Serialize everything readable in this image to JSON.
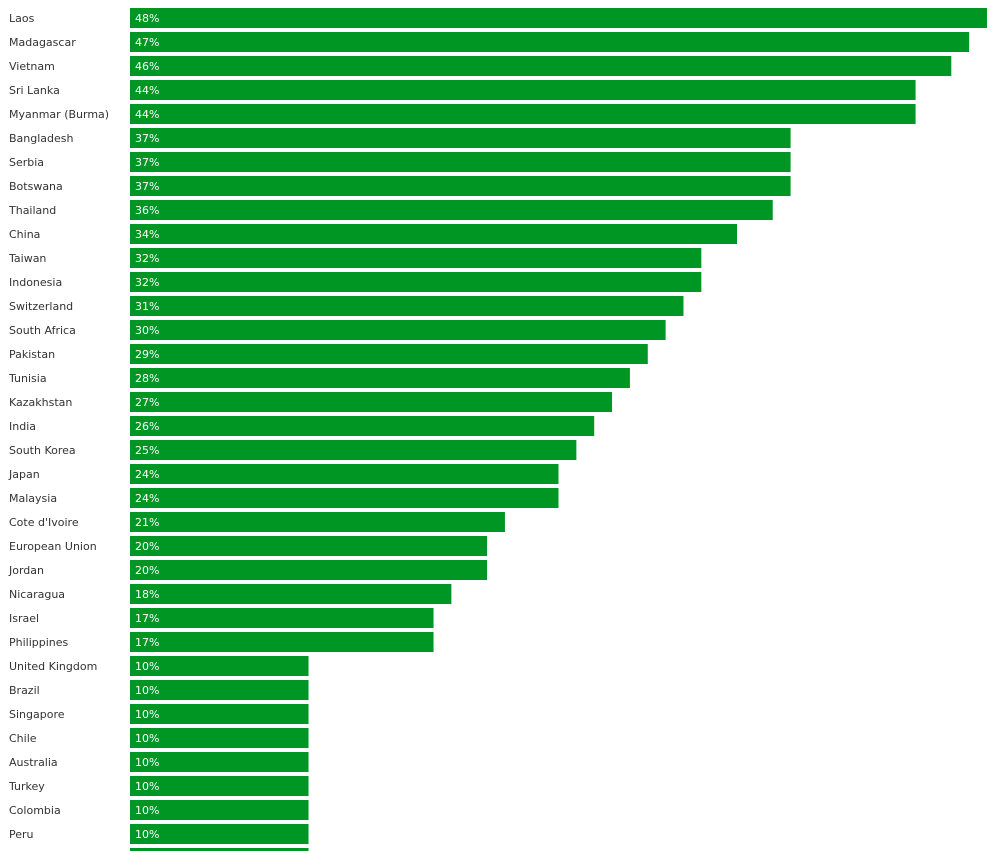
{
  "chart_data": {
    "type": "bar",
    "orientation": "horizontal",
    "color": "#009624",
    "categories": [
      "Laos",
      "Madagascar",
      "Vietnam",
      "Sri Lanka",
      "Myanmar (Burma)",
      "Bangladesh",
      "Serbia",
      "Botswana",
      "Thailand",
      "China",
      "Taiwan",
      "Indonesia",
      "Switzerland",
      "South Africa",
      "Pakistan",
      "Tunisia",
      "Kazakhstan",
      "India",
      "South Korea",
      "Japan",
      "Malaysia",
      "Cote d'Ivoire",
      "European Union",
      "Jordan",
      "Nicaragua",
      "Israel",
      "Philippines",
      "United Kingdom",
      "Brazil",
      "Singapore",
      "Chile",
      "Australia",
      "Turkey",
      "Colombia",
      "Peru",
      null
    ],
    "values": [
      48,
      47,
      46,
      44,
      44,
      37,
      37,
      37,
      36,
      34,
      32,
      32,
      31,
      30,
      29,
      28,
      27,
      26,
      25,
      24,
      24,
      21,
      20,
      20,
      18,
      17,
      17,
      10,
      10,
      10,
      10,
      10,
      10,
      10,
      10,
      10
    ],
    "value_labels": [
      "48%",
      "47%",
      "46%",
      "44%",
      "44%",
      "37%",
      "37%",
      "37%",
      "36%",
      "34%",
      "32%",
      "32%",
      "31%",
      "30%",
      "29%",
      "28%",
      "27%",
      "26%",
      "25%",
      "24%",
      "24%",
      "21%",
      "20%",
      "20%",
      "18%",
      "17%",
      "17%",
      "10%",
      "10%",
      "10%",
      "10%",
      "10%",
      "10%",
      "10%",
      "10%",
      null
    ]
  }
}
